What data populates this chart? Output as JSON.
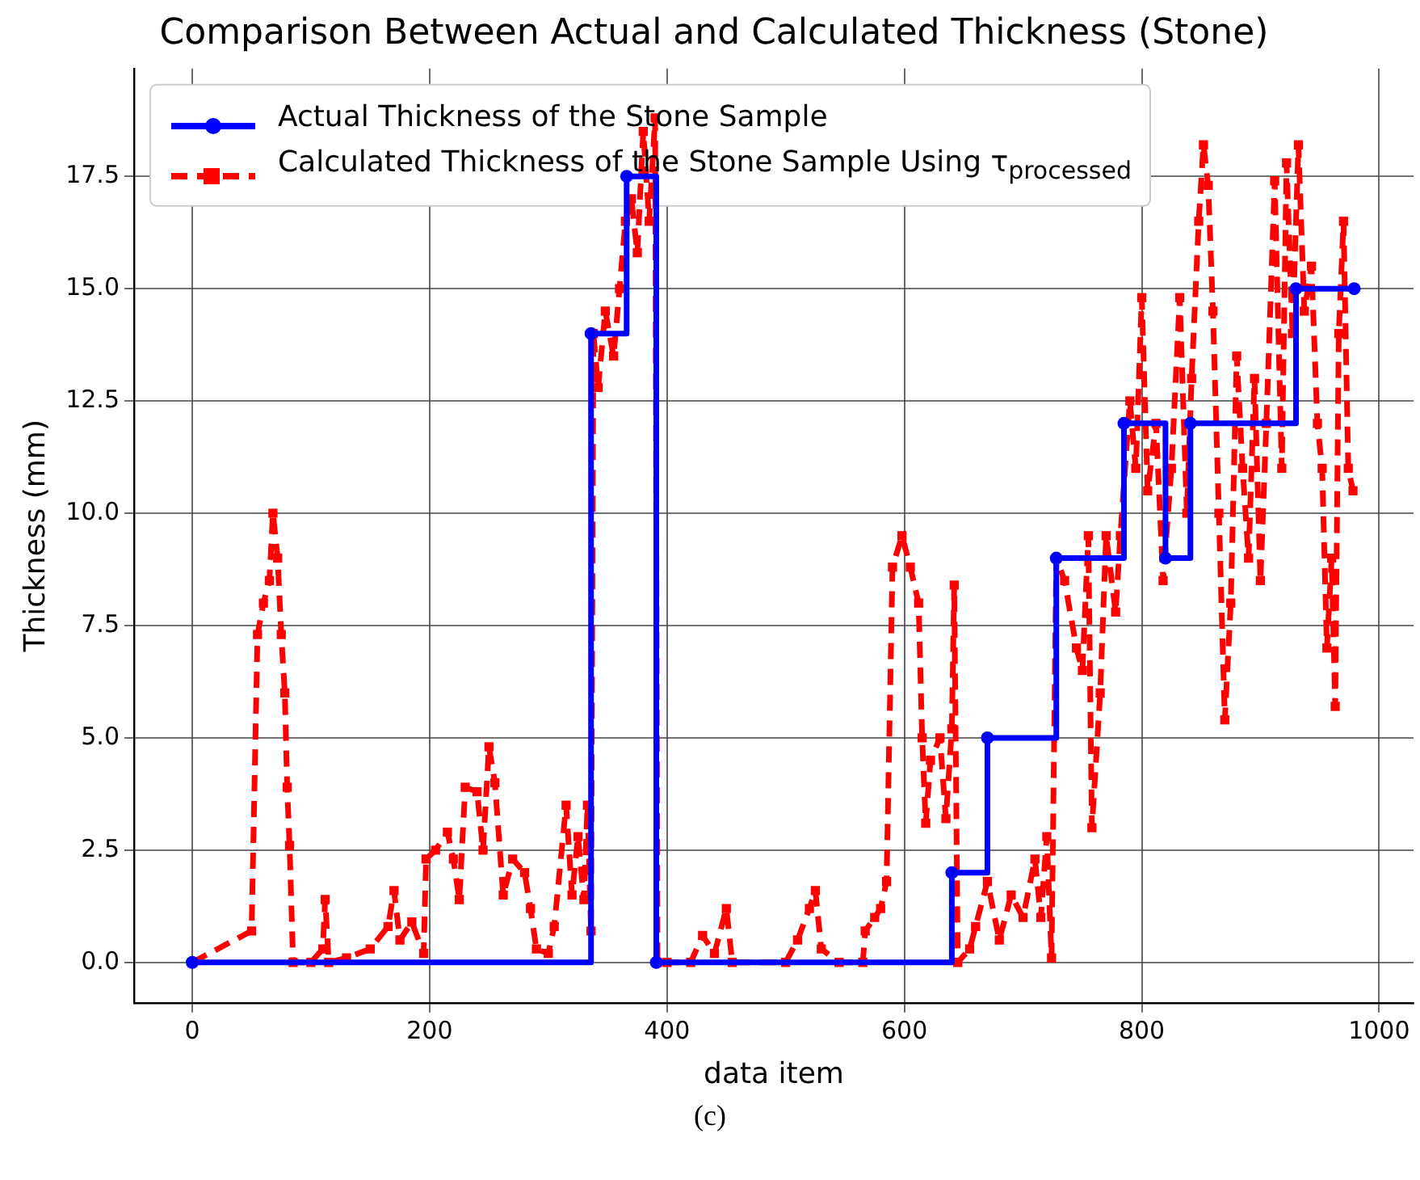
{
  "chart_data": {
    "type": "line",
    "title": "Comparison Between Actual and Calculated Thickness (Stone)",
    "xlabel": "data item",
    "ylabel": "Thickness (mm)",
    "annotations": [
      "(c)"
    ],
    "xlim": [
      -49,
      1029
    ],
    "xticks": [
      0,
      200,
      400,
      600,
      800,
      1000
    ],
    "ylim": [
      -0.9,
      19.9
    ],
    "yticks": [
      {
        "value": 0,
        "label": "0.0"
      },
      2.5,
      {
        "value": 5,
        "label": "5.0"
      },
      7.5,
      {
        "value": 10,
        "label": "10.0"
      },
      12.5,
      {
        "value": 15,
        "label": "15.0"
      },
      17.5
    ],
    "grid": true,
    "legend": "top left",
    "series": [
      {
        "name": "Actual Thickness of the Stone Sample",
        "type": "step",
        "color": "#0000ff",
        "marker": "circle",
        "line_style": "solid",
        "x": [
          0,
          336,
          366,
          391,
          640,
          670,
          728,
          785,
          820,
          841,
          930,
          979
        ],
        "values": [
          0,
          14,
          17.5,
          0,
          2,
          5,
          9,
          12,
          9,
          12,
          15,
          15
        ]
      },
      {
        "name": "Calculated Thickness of the Stone Sample Using τ$_{processed}$",
        "type": "line",
        "color": "#ff0000",
        "marker": "square",
        "line_style": "dashed",
        "x": [
          0,
          50,
          55,
          60,
          65,
          68,
          72,
          75,
          78,
          80,
          82,
          85,
          100,
          110,
          112,
          115,
          130,
          150,
          165,
          170,
          175,
          185,
          195,
          197,
          205,
          215,
          220,
          225,
          230,
          240,
          245,
          250,
          255,
          262,
          270,
          280,
          285,
          290,
          300,
          305,
          315,
          320,
          325,
          330,
          333,
          336,
          338,
          342,
          348,
          355,
          360,
          365,
          370,
          375,
          380,
          385,
          390,
          392,
          400,
          420,
          430,
          440,
          450,
          455,
          500,
          510,
          520,
          525,
          530,
          545,
          565,
          567,
          575,
          580,
          585,
          590,
          598,
          605,
          612,
          615,
          618,
          622,
          630,
          635,
          640,
          642,
          645,
          655,
          660,
          670,
          680,
          690,
          700,
          710,
          715,
          720,
          724,
          728,
          735,
          745,
          750,
          755,
          758,
          765,
          770,
          778,
          782,
          790,
          795,
          800,
          805,
          812,
          818,
          825,
          832,
          838,
          842,
          848,
          852,
          856,
          860,
          865,
          870,
          875,
          880,
          885,
          890,
          895,
          900,
          905,
          912,
          918,
          922,
          927,
          932,
          937,
          943,
          948,
          952,
          956,
          960,
          963,
          966,
          970,
          974,
          978
        ],
        "values": [
          0,
          0.7,
          7.3,
          8,
          8.5,
          10,
          9,
          7.3,
          6,
          3.9,
          2.6,
          0,
          0,
          0.3,
          1.4,
          0,
          0.1,
          0.3,
          0.8,
          1.6,
          0.5,
          0.9,
          0.2,
          2.3,
          2.5,
          2.9,
          2.3,
          1.4,
          3.9,
          3.8,
          2.5,
          4.8,
          4,
          1.5,
          2.3,
          2,
          1.2,
          0.3,
          0.2,
          0.8,
          3.5,
          1.5,
          2.8,
          1.4,
          3.5,
          0.7,
          14,
          12.8,
          14.5,
          13.5,
          15,
          16.5,
          17,
          15.8,
          18.5,
          16.5,
          18.8,
          0,
          0,
          0,
          0.6,
          0.2,
          1.2,
          0,
          0,
          0.5,
          1.2,
          1.6,
          0.3,
          0,
          0,
          0.7,
          1,
          1.2,
          1.8,
          8.8,
          9.5,
          8.8,
          8,
          5,
          3.1,
          4.5,
          5,
          3.2,
          5.2,
          8.4,
          0,
          0.3,
          0.8,
          1.8,
          0.5,
          1.5,
          1,
          2.3,
          1,
          2.8,
          0.1,
          9,
          8.5,
          7,
          6.5,
          9.5,
          3,
          6,
          9.5,
          7.8,
          9.5,
          12.5,
          11,
          14.8,
          10.5,
          12,
          8.5,
          11,
          14.8,
          10,
          13,
          16.5,
          18.2,
          17.3,
          14.5,
          10,
          5.4,
          8,
          13.5,
          11,
          9,
          13,
          8.5,
          12,
          17.4,
          11,
          17.8,
          14,
          18.2,
          14.5,
          15.5,
          12,
          11,
          7,
          9,
          5.7,
          14,
          16.5,
          11,
          10.5
        ]
      }
    ]
  }
}
